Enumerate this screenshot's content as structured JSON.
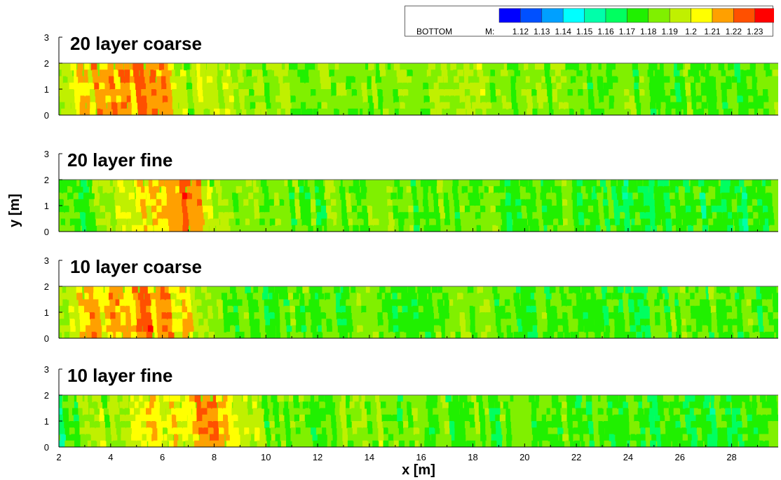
{
  "chart_data": {
    "type": "heatmap",
    "xlabel": "x [m]",
    "ylabel": "y [m]",
    "xlim": [
      2,
      29.8
    ],
    "ylim": [
      0,
      3
    ],
    "data_ylim": [
      0,
      2
    ],
    "x_ticks": [
      "2",
      "4",
      "6",
      "8",
      "10",
      "12",
      "14",
      "16",
      "18",
      "20",
      "22",
      "24",
      "26",
      "28"
    ],
    "y_ticks": [
      "0",
      "1",
      "2",
      "3"
    ],
    "legend": {
      "label": "BOTTOM",
      "variable": "M:",
      "levels": [
        "1.12",
        "1.13",
        "1.14",
        "1.15",
        "1.16",
        "1.17",
        "1.18",
        "1.19",
        "1.2",
        "1.21",
        "1.22",
        "1.23"
      ],
      "colors": [
        "#0000ff",
        "#0050ff",
        "#00a0ff",
        "#00ffff",
        "#00ffaa",
        "#00ff60",
        "#20f000",
        "#80f000",
        "#c0f000",
        "#ffff00",
        "#ffa000",
        "#ff5000",
        "#ff0000"
      ]
    },
    "panels": [
      {
        "title": "20 layer coarse",
        "x": [
          2,
          3,
          4,
          5,
          6,
          7,
          8,
          10,
          12,
          14,
          16,
          18,
          20,
          22,
          24,
          26,
          28,
          29.8
        ],
        "mean_M": [
          1.2,
          1.21,
          1.215,
          1.215,
          1.22,
          1.19,
          1.19,
          1.185,
          1.185,
          1.185,
          1.185,
          1.185,
          1.185,
          1.18,
          1.18,
          1.18,
          1.18,
          1.18
        ]
      },
      {
        "title": "20 layer fine",
        "x": [
          2,
          3,
          4,
          5,
          6,
          7,
          8,
          10,
          12,
          14,
          16,
          18,
          20,
          22,
          24,
          26,
          28,
          29.8
        ],
        "mean_M": [
          1.17,
          1.18,
          1.19,
          1.2,
          1.21,
          1.225,
          1.19,
          1.185,
          1.18,
          1.185,
          1.18,
          1.185,
          1.175,
          1.18,
          1.17,
          1.175,
          1.17,
          1.175
        ]
      },
      {
        "title": "10 layer coarse",
        "x": [
          2,
          3,
          4,
          5,
          6,
          7,
          8,
          10,
          12,
          14,
          16,
          18,
          20,
          22,
          24,
          26,
          28,
          29.8
        ],
        "mean_M": [
          1.19,
          1.21,
          1.21,
          1.215,
          1.215,
          1.2,
          1.18,
          1.18,
          1.18,
          1.18,
          1.18,
          1.18,
          1.18,
          1.18,
          1.175,
          1.18,
          1.18,
          1.175
        ]
      },
      {
        "title": "10 layer fine",
        "x": [
          2,
          3,
          4,
          5,
          6,
          7,
          8,
          10,
          12,
          14,
          16,
          18,
          20,
          22,
          24,
          26,
          28,
          29.8
        ],
        "mean_M": [
          1.17,
          1.185,
          1.19,
          1.2,
          1.2,
          1.21,
          1.215,
          1.185,
          1.18,
          1.19,
          1.18,
          1.18,
          1.175,
          1.18,
          1.175,
          1.175,
          1.17,
          1.175
        ]
      }
    ]
  }
}
